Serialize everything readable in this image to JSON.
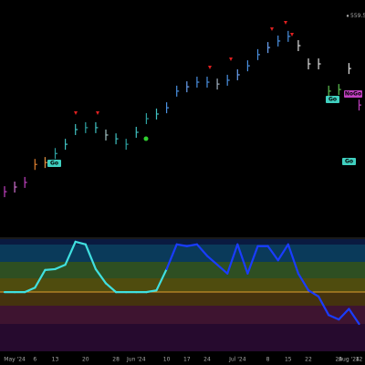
{
  "chart_data": {
    "type": "ohlc-oscillator",
    "last_price": 559.53,
    "categories": [
      null,
      "May '24",
      null,
      "6",
      null,
      "13",
      null,
      null,
      "20",
      null,
      null,
      "28",
      null,
      "Jun '24",
      null,
      null,
      "10",
      null,
      "17",
      null,
      "24",
      null,
      null,
      "Jul '24",
      null,
      null,
      "8",
      null,
      "15",
      null,
      "22",
      null,
      null,
      "29",
      "Aug '24",
      "12"
    ],
    "values": [
      495,
      496.7,
      498.4,
      505,
      505.7,
      509,
      512.4,
      517.8,
      518.5,
      518.5,
      515.8,
      514.4,
      512.4,
      516.8,
      521.8,
      523.5,
      525.8,
      531.9,
      533.5,
      535.2,
      535.2,
      534.5,
      535.9,
      537.9,
      541.2,
      545.3,
      547.9,
      550.3,
      552,
      548.6,
      541.9,
      541.9,
      531.9,
      532.5,
      540.2,
      526.8
    ],
    "colors": [
      "#c040c0",
      "#d070d0",
      "#c040c0",
      "#e08030",
      "#e09040",
      "#2ea0a0",
      "#40c0c0",
      "#40c0c0",
      "#2ea0a0",
      "#40c0c0",
      "#a0c0c0",
      "#40c0c0",
      "#2ea0a0",
      "#40c0c0",
      "#2ea0a0",
      "#40c0c0",
      "#4a90e0",
      "#4a90e0",
      "#6aa0f0",
      "#4a90e0",
      "#4a90e0",
      "#a0b0c0",
      "#4a90e0",
      "#6aa0f0",
      "#4a90e0",
      "#4a90e0",
      "#6aa0f0",
      "#4a90e0",
      "#4a90e0",
      "#dddddd",
      "#dddddd",
      "#dddddd",
      "#5ec050",
      "#5ec050",
      "#dddddd",
      "#c040c0"
    ],
    "ylim": [
      490,
      562
    ],
    "oscillator": {
      "values": [
        0,
        0,
        0,
        0.5,
        2.5,
        2.6,
        3.1,
        5.7,
        5.4,
        2.6,
        1,
        0,
        0,
        0,
        0,
        0.2,
        2.6,
        5.4,
        5.2,
        5.4,
        4.1,
        3.1,
        2.1,
        5.4,
        2.1,
        5.2,
        5.2,
        3.6,
        5.4,
        2.1,
        0.2,
        -0.5,
        -2.6,
        -3.1,
        -1.9,
        -3.6
      ],
      "colors": [
        "#40e0e0",
        "#40e0e0",
        "#40e0e0",
        "#40e0e0",
        "#40e0e0",
        "#40e0e0",
        "#40e0e0",
        "#40e0e0",
        "#40e0e0",
        "#40e0e0",
        "#40e0e0",
        "#40e0e0",
        "#40e0e0",
        "#40e0e0",
        "#40e0e0",
        "#40e0e0",
        "#40e0e0",
        "#1a3cff",
        "#1a3cff",
        "#1a3cff",
        "#1a3cff",
        "#1a3cff",
        "#1a3cff",
        "#1a3cff",
        "#1a3cff",
        "#1a3cff",
        "#1a3cff",
        "#1a3cff",
        "#1a3cff",
        "#1a3cff",
        "#1a3cff",
        "#1a3cff",
        "#1a3cff",
        "#1a3cff",
        "#1a3cff",
        "#1a3cff"
      ],
      "ylim": [
        -6.7,
        6
      ]
    },
    "annotations": [
      "Go",
      "Go",
      "Go",
      "NoGo"
    ]
  }
}
